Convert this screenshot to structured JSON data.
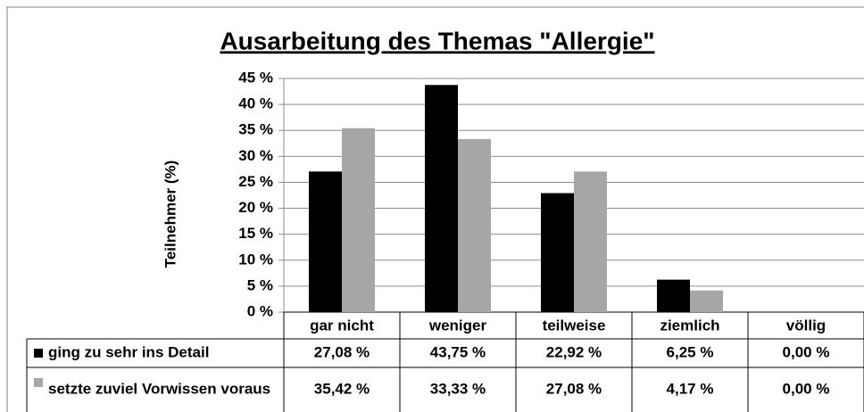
{
  "chart_data": {
    "type": "bar",
    "title": "Ausarbeitung des Themas \"Allergie\"",
    "y_label": "Teilnehmer (%)",
    "categories": [
      "gar nicht",
      "weniger",
      "teilweise",
      "ziemlich",
      "völlig"
    ],
    "series": [
      {
        "name": "ging zu sehr ins Detail",
        "color": "#000000",
        "values": [
          27.08,
          43.75,
          22.92,
          6.25,
          0
        ],
        "value_labels": [
          "27,08 %",
          "43,75 %",
          "22,92 %",
          "6,25 %",
          "0,00 %"
        ]
      },
      {
        "name": "setzte zuviel Vorwissen voraus",
        "color": "#a6a6a6",
        "values": [
          35.42,
          33.33,
          27.08,
          4.17,
          0
        ],
        "value_labels": [
          "35,42 %",
          "33,33 %",
          "27,08 %",
          "4,17 %",
          "0,00 %"
        ]
      }
    ],
    "ylim": [
      0,
      45
    ],
    "yticks": [
      {
        "value": 0,
        "label": "0 %"
      },
      {
        "value": 5,
        "label": "5 %"
      },
      {
        "value": 10,
        "label": "10 %"
      },
      {
        "value": 15,
        "label": "15 %"
      },
      {
        "value": 20,
        "label": "20 %"
      },
      {
        "value": 25,
        "label": "25 %"
      },
      {
        "value": 30,
        "label": "30 %"
      },
      {
        "value": 35,
        "label": "35 %"
      },
      {
        "value": 40,
        "label": "40 %"
      },
      {
        "value": 45,
        "label": "45 %"
      }
    ],
    "grid": true
  }
}
